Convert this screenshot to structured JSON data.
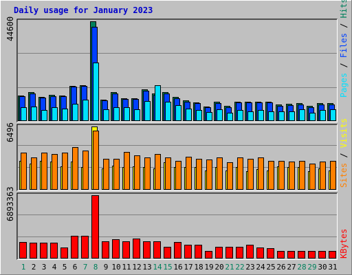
{
  "title": "Daily usage for January 2023",
  "colors": {
    "background": "#c0c0c0",
    "title": "#0000cc",
    "hits": "#00805c",
    "files": "#0040ff",
    "pages": "#00e0ff",
    "visits": "#ffff00",
    "sites": "#ff8000",
    "kbytes": "#ff0000",
    "weekend_day": "#00805c",
    "weekday": "#000000"
  },
  "legend": {
    "pages": "Pages",
    "files": "Files",
    "hits": "Hits",
    "sep": " / ",
    "sites": "Sites",
    "visits": "Visits",
    "kbytes": "KBytes"
  },
  "chart_data": {
    "type": "bar",
    "title": "Daily usage for January 2023",
    "x": [
      1,
      2,
      3,
      4,
      5,
      6,
      7,
      8,
      9,
      10,
      11,
      12,
      13,
      14,
      15,
      16,
      17,
      18,
      19,
      20,
      21,
      22,
      23,
      24,
      25,
      26,
      27,
      28,
      29,
      30,
      31
    ],
    "weekend_days": [
      1,
      7,
      8,
      14,
      15,
      21,
      22,
      28,
      29
    ],
    "panels": [
      {
        "name": "hits-files-pages",
        "max_label": "44600",
        "ymax": 44600,
        "series": [
          {
            "name": "Hits",
            "values": [
              11500,
              12900,
              10900,
              11700,
              11500,
              15800,
              16100,
              44600,
              9600,
              12900,
              10300,
              10300,
              14000,
              12400,
              12900,
              10800,
              9100,
              8400,
              6600,
              8600,
              6800,
              8700,
              8700,
              8700,
              8700,
              7300,
              7700,
              8000,
              6800,
              8000,
              8000
            ]
          },
          {
            "name": "Files",
            "values": [
              11000,
              12400,
              10500,
              11200,
              11000,
              15300,
              15600,
              42200,
              9100,
              12400,
              9800,
              9800,
              13500,
              11800,
              12400,
              10300,
              8600,
              7900,
              6100,
              8100,
              6300,
              8200,
              8200,
              8200,
              8200,
              6800,
              7200,
              7500,
              6300,
              7500,
              7500
            ]
          },
          {
            "name": "Pages",
            "values": [
              6000,
              6500,
              4900,
              6000,
              5500,
              7800,
              9500,
              26200,
              5300,
              6000,
              6200,
              5300,
              9000,
              16000,
              8500,
              7200,
              5400,
              5000,
              4000,
              5300,
              3700,
              5000,
              4400,
              4900,
              4200,
              4400,
              4200,
              5300,
              3700,
              4900,
              5300
            ]
          }
        ]
      },
      {
        "name": "visits-sites",
        "max_label": "6496",
        "ymax": 6496,
        "series": [
          {
            "name": "Visits",
            "values": [
              3000,
              2700,
              3000,
              2900,
              2400,
              2900,
              2300,
              6496,
              2200,
              2500,
              2300,
              2400,
              2300,
              2200,
              2800,
              2300,
              2300,
              2300,
              2000,
              2300,
              2000,
              2300,
              1900,
              2100,
              2000,
              2400,
              2300,
              2300,
              1900,
              2200,
              2000
            ]
          },
          {
            "name": "Sites",
            "values": [
              3800,
              3300,
              3800,
              3700,
              3800,
              4400,
              4000,
              6100,
              3200,
              3200,
              3900,
              3500,
              3300,
              3700,
              3300,
              3000,
              3400,
              3200,
              3100,
              3300,
              2800,
              3300,
              3200,
              3300,
              3000,
              3000,
              2900,
              3000,
              2700,
              2900,
              3000
            ]
          }
        ]
      },
      {
        "name": "kbytes",
        "max_label": "6893363",
        "ymax": 6893363,
        "series": [
          {
            "name": "KBytes",
            "values": [
              1800000,
              1700000,
              1700000,
              1700000,
              1200000,
              2500000,
              2500000,
              6893363,
              1900000,
              2100000,
              1900000,
              2200000,
              1900000,
              1900000,
              1300000,
              1800000,
              1500000,
              1500000,
              800000,
              1300000,
              1300000,
              1300000,
              1500000,
              1200000,
              1100000,
              800000,
              800000,
              800000,
              800000,
              800000,
              800000
            ]
          }
        ]
      }
    ]
  }
}
